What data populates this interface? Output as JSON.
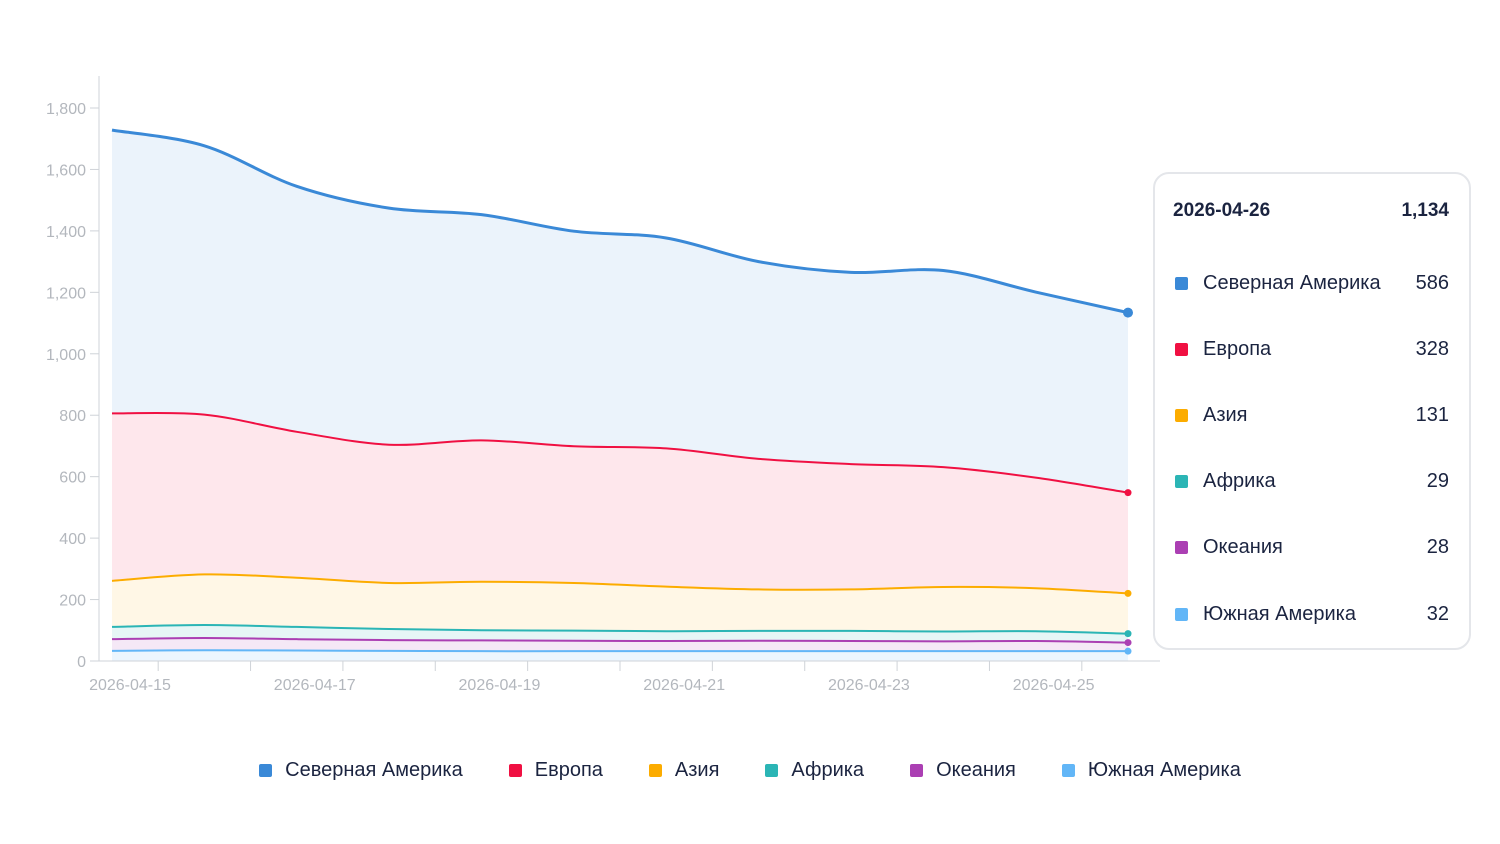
{
  "chart_data": {
    "type": "area",
    "stacked": true,
    "x": [
      "2026-04-15",
      "2026-04-16",
      "2026-04-17",
      "2026-04-18",
      "2026-04-19",
      "2026-04-20",
      "2026-04-21",
      "2026-04-22",
      "2026-04-23",
      "2026-04-24",
      "2026-04-25",
      "2026-04-26"
    ],
    "x_tick_labels": [
      "2026-04-15",
      "2026-04-17",
      "2026-04-19",
      "2026-04-21",
      "2026-04-23",
      "2026-04-25"
    ],
    "y_ticks": [
      "0",
      "200",
      "400",
      "600",
      "800",
      "1,000",
      "1,200",
      "1,400",
      "1,600",
      "1,800"
    ],
    "ylim": [
      0,
      1900
    ],
    "grid": false,
    "legend_position": "bottom",
    "series": [
      {
        "name": "Южная Америка",
        "color": "#62b6f7",
        "values": [
          33,
          35,
          34,
          33,
          32,
          32,
          32,
          32,
          32,
          32,
          32,
          32
        ]
      },
      {
        "name": "Океания",
        "color": "#ab3fb3",
        "values": [
          38,
          40,
          37,
          35,
          35,
          34,
          33,
          34,
          33,
          32,
          33,
          28
        ]
      },
      {
        "name": "Африка",
        "color": "#2bb5b5",
        "values": [
          40,
          42,
          40,
          36,
          33,
          33,
          32,
          32,
          33,
          32,
          32,
          29
        ]
      },
      {
        "name": "Азия",
        "color": "#fcac00",
        "values": [
          150,
          165,
          160,
          150,
          158,
          155,
          145,
          135,
          135,
          145,
          140,
          131
        ]
      },
      {
        "name": "Европа",
        "color": "#f01042",
        "values": [
          545,
          520,
          475,
          450,
          460,
          445,
          450,
          425,
          408,
          390,
          360,
          328
        ]
      },
      {
        "name": "Северная Америка",
        "color": "#3a89d7",
        "values": [
          922,
          875,
          799,
          770,
          735,
          700,
          685,
          642,
          624,
          640,
          604,
          586
        ]
      }
    ],
    "tooltip": {
      "date": "2026-04-26",
      "total": "1,134",
      "rows": [
        {
          "label": "Северная Америка",
          "value": "586",
          "color": "#3a89d7"
        },
        {
          "label": "Европа",
          "value": "328",
          "color": "#f01042"
        },
        {
          "label": "Азия",
          "value": "131",
          "color": "#fcac00"
        },
        {
          "label": "Африка",
          "value": "29",
          "color": "#2bb5b5"
        },
        {
          "label": "Океания",
          "value": "28",
          "color": "#ab3fb3"
        },
        {
          "label": "Южная Америка",
          "value": "32",
          "color": "#62b6f7"
        }
      ]
    },
    "legend": [
      {
        "label": "Северная Америка",
        "color": "#3a89d7"
      },
      {
        "label": "Европа",
        "color": "#f01042"
      },
      {
        "label": "Азия",
        "color": "#fcac00"
      },
      {
        "label": "Африка",
        "color": "#2bb5b5"
      },
      {
        "label": "Океания",
        "color": "#ab3fb3"
      },
      {
        "label": "Южная Америка",
        "color": "#62b6f7"
      }
    ]
  }
}
